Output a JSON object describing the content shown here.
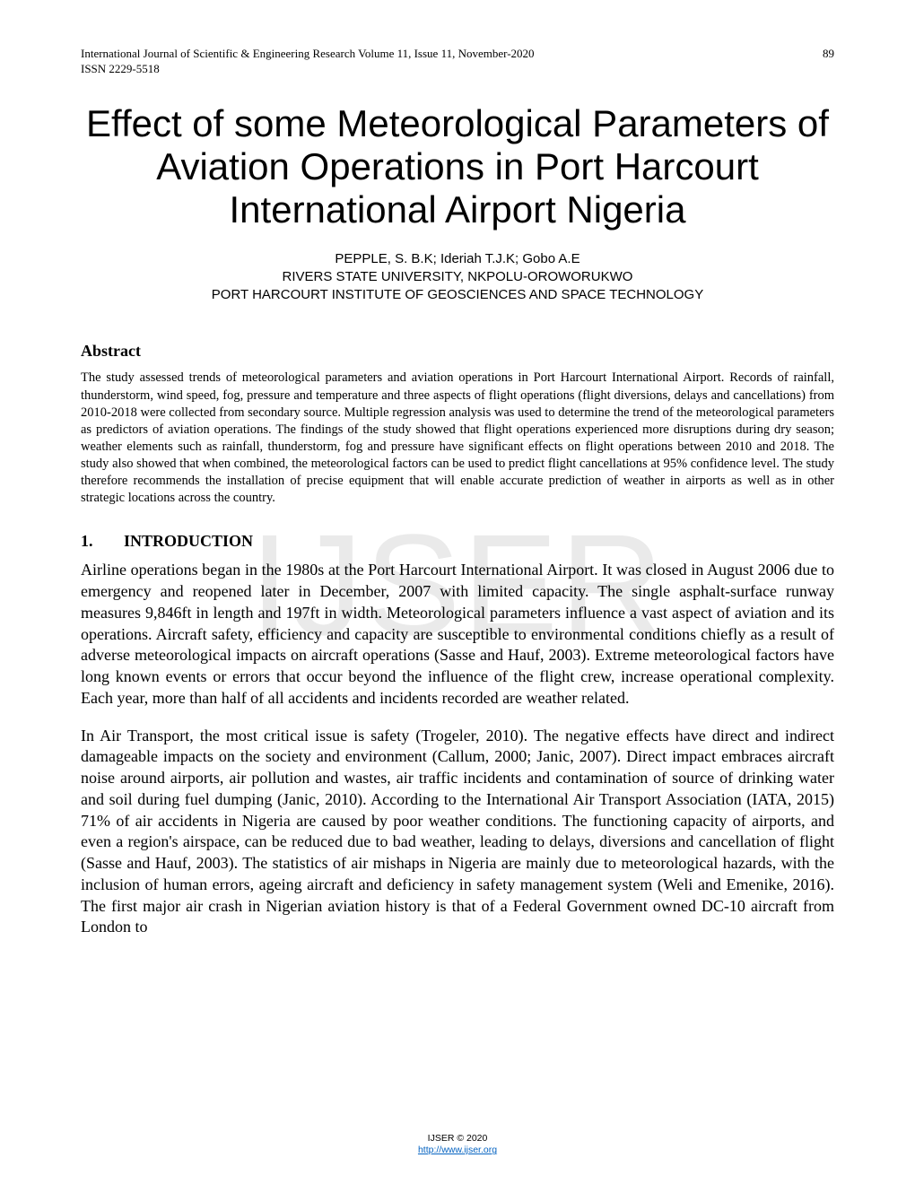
{
  "header": {
    "journal_line": "International Journal of Scientific & Engineering Research Volume 11, Issue 11, November-2020",
    "issn_line": "ISSN 2229-5518",
    "page_number": "89"
  },
  "title": "Effect of some Meteorological Parameters of Aviation Operations in Port Harcourt International Airport Nigeria",
  "authors": {
    "line1": "PEPPLE, S. B.K; Ideriah T.J.K; Gobo A.E",
    "line2": "RIVERS STATE UNIVERSITY, NKPOLU-OROWORUKWO",
    "line3": "PORT HARCOURT INSTITUTE OF GEOSCIENCES AND SPACE TECHNOLOGY"
  },
  "abstract": {
    "heading": "Abstract",
    "text": "The study assessed trends of meteorological parameters and aviation operations in Port Harcourt International Airport. Records of rainfall, thunderstorm, wind speed, fog, pressure and temperature and three aspects of flight operations (flight diversions, delays and cancellations) from 2010-2018 were collected from secondary source. Multiple regression analysis was used to determine the trend of the meteorological parameters as predictors of aviation operations. The findings of the study showed that flight operations experienced more disruptions during dry season; weather elements such as rainfall, thunderstorm, fog and pressure have significant effects on flight operations between 2010 and 2018. The study also showed that when combined, the meteorological factors can be used to predict flight cancellations at 95% confidence level. The study therefore recommends the installation of precise equipment that will enable accurate prediction of weather in airports as well as in other strategic locations across the country."
  },
  "introduction": {
    "number": "1.",
    "heading": "INTRODUCTION",
    "para1": "Airline operations began in the 1980s at the Port Harcourt International Airport. It was closed in August 2006 due to emergency and reopened later in December, 2007 with limited capacity. The single asphalt-surface runway measures 9,846ft in length and 197ft in width. Meteorological parameters influence a vast aspect of aviation and its operations. Aircraft safety, efficiency and capacity are susceptible to environmental conditions chiefly as a result of adverse meteorological impacts on aircraft operations (Sasse and Hauf, 2003). Extreme meteorological factors have long known events or errors that occur beyond the influence of the flight crew, increase operational complexity. Each year, more than half of all accidents and incidents recorded are weather related.",
    "para2": "In Air Transport, the most critical issue is safety (Trogeler, 2010). The negative effects have direct and indirect damageable impacts on the society and environment (Callum, 2000; Janic, 2007). Direct impact embraces aircraft noise around airports, air pollution and wastes, air traffic incidents and contamination of source of drinking water and soil during fuel dumping (Janic, 2010).  According to the International Air Transport Association (IATA, 2015) 71% of air accidents in Nigeria are caused by poor weather conditions. The functioning capacity of airports, and even a region's airspace, can be reduced due to bad weather, leading to delays, diversions and cancellation of flight (Sasse and Hauf, 2003). The statistics of air mishaps in Nigeria are mainly due to meteorological hazards, with the inclusion of human errors, ageing aircraft and deficiency in safety management system (Weli and Emenike, 2016). The first major air crash in Nigerian aviation history is that of a Federal Government owned DC-10 aircraft from London to"
  },
  "watermark": "IJSER",
  "footer": {
    "line1": "IJSER © 2020",
    "link_text": "http://www.ijser.org"
  }
}
